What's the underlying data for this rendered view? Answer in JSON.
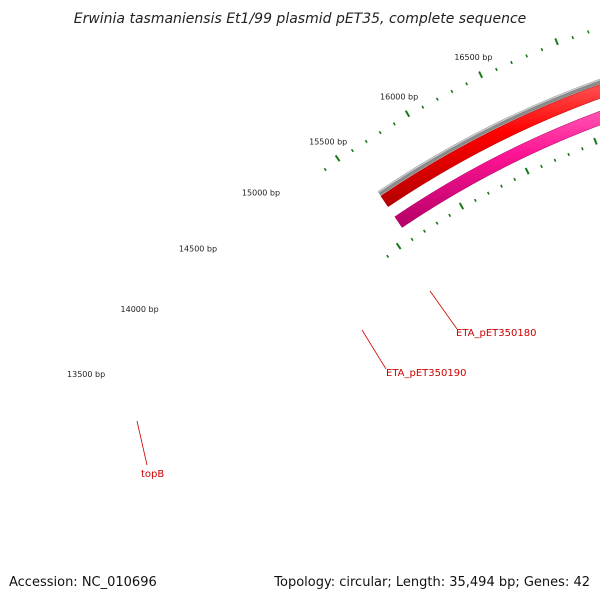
{
  "title": "Erwinia tasmaniensis Et1/99 plasmid pET35, complete sequence",
  "footer": {
    "accession": "Accession: NC_010696",
    "summary": "Topology: circular; Length: 35,494 bp; Genes: 42"
  },
  "colors": {
    "backbone": "#8a8a8a",
    "forward_gene": "#ff0000",
    "reverse_gene": "#ff1493",
    "ticks": "#1a7a1a",
    "label": "#cc0000"
  },
  "scale": {
    "tick_labels": [
      {
        "bp": 13500,
        "text": "13500 bp"
      },
      {
        "bp": 14000,
        "text": "14000 bp"
      },
      {
        "bp": 14500,
        "text": "14500 bp"
      },
      {
        "bp": 15000,
        "text": "15000 bp"
      },
      {
        "bp": 15500,
        "text": "15500 bp"
      },
      {
        "bp": 16000,
        "text": "16000 bp"
      },
      {
        "bp": 16500,
        "text": "16500 bp"
      }
    ]
  },
  "genes": [
    {
      "name": "ETA_pET350180",
      "strand": "+",
      "label": "ETA_pET350180"
    },
    {
      "name": "ETA_pET350190",
      "strand": "+",
      "label": "ETA_pET350190"
    },
    {
      "name": "topB",
      "strand": "-",
      "label": "topB"
    }
  ]
}
